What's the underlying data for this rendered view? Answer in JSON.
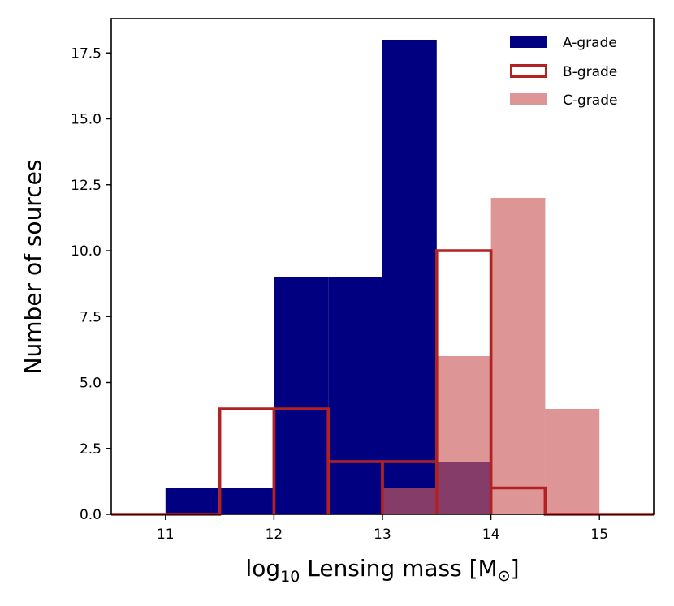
{
  "chart_data": {
    "type": "histogram",
    "title": "",
    "xlabel_main": "log",
    "xlabel_sub": "10",
    "xlabel_rest": " Lensing mass [M",
    "xlabel_sym": "⊙",
    "xlabel_end": "]",
    "ylabel": "Number of sources",
    "xlim": [
      10.5,
      15.5
    ],
    "ylim": [
      0,
      18.8
    ],
    "xticks": [
      11,
      12,
      13,
      14,
      15
    ],
    "xtick_labels": [
      "11",
      "12",
      "13",
      "14",
      "15"
    ],
    "yticks": [
      0,
      2.5,
      5,
      7.5,
      10,
      12.5,
      15,
      17.5
    ],
    "ytick_labels": [
      "0.0",
      "2.5",
      "5.0",
      "7.5",
      "10.0",
      "12.5",
      "15.0",
      "17.5"
    ],
    "bin_edges": [
      10.5,
      11.0,
      11.5,
      12.0,
      12.5,
      13.0,
      13.5,
      14.0,
      14.5,
      15.0,
      15.5
    ],
    "legend_position": "top-right",
    "series": [
      {
        "name": "A-grade",
        "style": "filled",
        "color": "#000080",
        "values": [
          0,
          1,
          1,
          9,
          9,
          18,
          2,
          0,
          0,
          0
        ]
      },
      {
        "name": "B-grade",
        "style": "step",
        "color": "#b22222",
        "values": [
          0,
          0,
          4,
          4,
          2,
          2,
          10,
          1,
          0,
          0
        ]
      },
      {
        "name": "C-grade",
        "style": "filled",
        "color": "#cd5c5c",
        "opacity": 0.65,
        "values": [
          0,
          0,
          0,
          0,
          0,
          1,
          6,
          12,
          4,
          0
        ]
      }
    ]
  }
}
